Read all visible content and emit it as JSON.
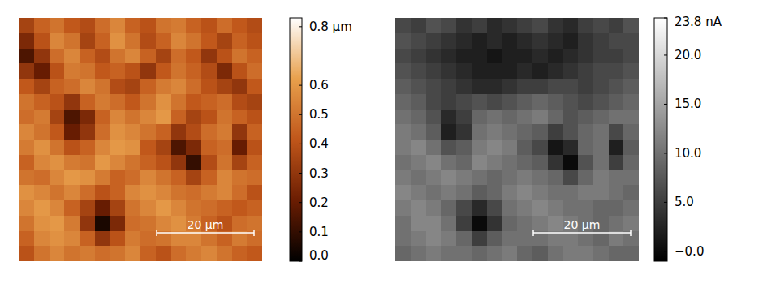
{
  "chart_data": [
    {
      "type": "heatmap",
      "tick_labels": false,
      "xlim": [
        0,
        50
      ],
      "ylim": [
        0,
        50
      ],
      "scale_bar": {
        "value": 20,
        "label": "20 µm"
      },
      "colors": [
        "#000000",
        "#6b1d02",
        "#c0561a",
        "#e8a04c",
        "#ffffff"
      ],
      "colorbar": {
        "range": [
          0,
          0.83
        ],
        "ticks": [
          {
            "value": 0.8,
            "label": "0.8 µm"
          },
          0.6,
          0.5,
          0.4,
          0.3,
          0.2,
          0.1,
          {
            "value": 0,
            "label": "0.0"
          }
        ]
      },
      "cells": [
        [
          0.35,
          0.45,
          0.5,
          0.42,
          0.38,
          0.48,
          0.55,
          0.45,
          0.4,
          0.5,
          0.52,
          0.45,
          0.4,
          0.48,
          0.42,
          0.38
        ],
        [
          0.25,
          0.4,
          0.55,
          0.5,
          0.35,
          0.45,
          0.58,
          0.5,
          0.38,
          0.45,
          0.55,
          0.5,
          0.42,
          0.35,
          0.45,
          0.4
        ],
        [
          0.15,
          0.3,
          0.48,
          0.55,
          0.45,
          0.38,
          0.5,
          0.55,
          0.45,
          0.35,
          0.48,
          0.42,
          0.3,
          0.4,
          0.5,
          0.45
        ],
        [
          0.3,
          0.2,
          0.4,
          0.52,
          0.5,
          0.42,
          0.45,
          0.4,
          0.3,
          0.42,
          0.5,
          0.45,
          0.38,
          0.25,
          0.4,
          0.48
        ],
        [
          0.42,
          0.35,
          0.45,
          0.48,
          0.55,
          0.5,
          0.38,
          0.35,
          0.45,
          0.52,
          0.55,
          0.48,
          0.4,
          0.35,
          0.3,
          0.42
        ],
        [
          0.5,
          0.45,
          0.4,
          0.3,
          0.45,
          0.52,
          0.48,
          0.42,
          0.5,
          0.58,
          0.5,
          0.42,
          0.45,
          0.48,
          0.38,
          0.35
        ],
        [
          0.48,
          0.52,
          0.35,
          0.15,
          0.25,
          0.45,
          0.55,
          0.5,
          0.55,
          0.6,
          0.45,
          0.35,
          0.4,
          0.5,
          0.45,
          0.4
        ],
        [
          0.55,
          0.5,
          0.42,
          0.2,
          0.3,
          0.48,
          0.58,
          0.55,
          0.5,
          0.45,
          0.3,
          0.38,
          0.48,
          0.52,
          0.3,
          0.45
        ],
        [
          0.52,
          0.58,
          0.5,
          0.4,
          0.45,
          0.55,
          0.6,
          0.58,
          0.42,
          0.35,
          0.15,
          0.25,
          0.45,
          0.48,
          0.2,
          0.4
        ],
        [
          0.45,
          0.55,
          0.58,
          0.52,
          0.5,
          0.6,
          0.55,
          0.5,
          0.45,
          0.4,
          0.3,
          0.1,
          0.38,
          0.5,
          0.35,
          0.45
        ],
        [
          0.5,
          0.48,
          0.55,
          0.6,
          0.58,
          0.52,
          0.45,
          0.48,
          0.55,
          0.5,
          0.45,
          0.35,
          0.45,
          0.55,
          0.5,
          0.48
        ],
        [
          0.58,
          0.55,
          0.5,
          0.55,
          0.48,
          0.4,
          0.45,
          0.55,
          0.58,
          0.55,
          0.5,
          0.48,
          0.52,
          0.55,
          0.48,
          0.4
        ],
        [
          0.55,
          0.6,
          0.55,
          0.45,
          0.35,
          0.2,
          0.35,
          0.5,
          0.55,
          0.6,
          0.55,
          0.5,
          0.48,
          0.45,
          0.42,
          0.45
        ],
        [
          0.5,
          0.58,
          0.6,
          0.52,
          0.3,
          0.05,
          0.25,
          0.48,
          0.5,
          0.55,
          0.58,
          0.52,
          0.45,
          0.4,
          0.48,
          0.5
        ],
        [
          0.45,
          0.55,
          0.58,
          0.55,
          0.45,
          0.3,
          0.4,
          0.52,
          0.48,
          0.5,
          0.55,
          0.55,
          0.5,
          0.45,
          0.52,
          0.48
        ],
        [
          0.4,
          0.5,
          0.55,
          0.5,
          0.52,
          0.48,
          0.5,
          0.55,
          0.45,
          0.4,
          0.48,
          0.52,
          0.55,
          0.5,
          0.45,
          0.42
        ]
      ]
    },
    {
      "type": "heatmap",
      "tick_labels": false,
      "xlim": [
        0,
        50
      ],
      "ylim": [
        0,
        50
      ],
      "scale_bar": {
        "value": 20,
        "label": "20 µm"
      },
      "colors": [
        "#000000",
        "#ffffff"
      ],
      "colorbar": {
        "range": [
          -1,
          23.8
        ],
        "ticks": [
          {
            "value": 23.8,
            "label": "23.8 nA"
          },
          {
            "value": 20,
            "label": "20.0"
          },
          {
            "value": 15,
            "label": "15.0"
          },
          {
            "value": 10,
            "label": "10.0"
          },
          {
            "value": 5,
            "label": "5.0"
          },
          {
            "value": 0,
            "label": "−0.0"
          }
        ]
      },
      "cells": [
        [
          6,
          5,
          7,
          6,
          4,
          5,
          3,
          4,
          5,
          6,
          4,
          3,
          5,
          6,
          5,
          7
        ],
        [
          7,
          6,
          5,
          4,
          3,
          2,
          3,
          2,
          3,
          4,
          3,
          2,
          4,
          5,
          6,
          6
        ],
        [
          6,
          5,
          4,
          3,
          2,
          2,
          1,
          2,
          2,
          3,
          2,
          3,
          4,
          5,
          5,
          6
        ],
        [
          7,
          6,
          5,
          4,
          3,
          2,
          2,
          2,
          3,
          2,
          3,
          4,
          5,
          6,
          6,
          7
        ],
        [
          8,
          7,
          6,
          5,
          4,
          3,
          3,
          4,
          5,
          5,
          6,
          6,
          5,
          6,
          7,
          8
        ],
        [
          9,
          8,
          6,
          5,
          6,
          7,
          6,
          7,
          8,
          9,
          8,
          7,
          6,
          7,
          8,
          9
        ],
        [
          10,
          9,
          7,
          3,
          5,
          9,
          10,
          9,
          10,
          11,
          9,
          7,
          8,
          9,
          10,
          10
        ],
        [
          11,
          10,
          8,
          2,
          4,
          10,
          11,
          10,
          9,
          8,
          5,
          7,
          9,
          10,
          6,
          9
        ],
        [
          11,
          12,
          10,
          7,
          8,
          11,
          12,
          11,
          8,
          6,
          1,
          3,
          9,
          10,
          2,
          8
        ],
        [
          10,
          11,
          12,
          10,
          9,
          12,
          11,
          10,
          9,
          8,
          4,
          0,
          7,
          10,
          5,
          9
        ],
        [
          11,
          10,
          11,
          12,
          11,
          10,
          9,
          10,
          11,
          10,
          9,
          6,
          9,
          11,
          10,
          10
        ],
        [
          12,
          11,
          10,
          11,
          10,
          8,
          9,
          11,
          12,
          11,
          10,
          10,
          11,
          11,
          10,
          9
        ],
        [
          11,
          12,
          11,
          9,
          6,
          3,
          6,
          10,
          11,
          12,
          11,
          10,
          10,
          9,
          9,
          10
        ],
        [
          10,
          12,
          12,
          10,
          5,
          0,
          4,
          9,
          10,
          11,
          12,
          11,
          10,
          9,
          10,
          11
        ],
        [
          10,
          11,
          12,
          11,
          9,
          5,
          8,
          10,
          10,
          10,
          11,
          11,
          10,
          9,
          11,
          10
        ],
        [
          9,
          10,
          11,
          10,
          10,
          9,
          10,
          11,
          9,
          8,
          10,
          11,
          11,
          10,
          9,
          9
        ]
      ]
    }
  ]
}
